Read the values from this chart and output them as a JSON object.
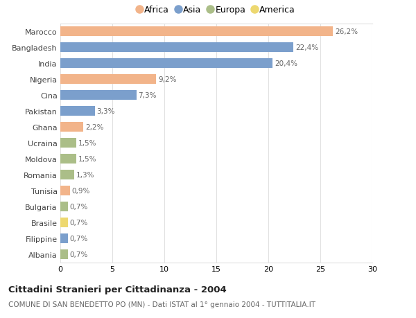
{
  "countries": [
    "Marocco",
    "Bangladesh",
    "India",
    "Nigeria",
    "Cina",
    "Pakistan",
    "Ghana",
    "Ucraina",
    "Moldova",
    "Romania",
    "Tunisia",
    "Bulgaria",
    "Brasile",
    "Filippine",
    "Albania"
  ],
  "values": [
    26.2,
    22.4,
    20.4,
    9.2,
    7.3,
    3.3,
    2.2,
    1.5,
    1.5,
    1.3,
    0.9,
    0.7,
    0.7,
    0.7,
    0.7
  ],
  "labels": [
    "26,2%",
    "22,4%",
    "20,4%",
    "9,2%",
    "7,3%",
    "3,3%",
    "2,2%",
    "1,5%",
    "1,5%",
    "1,3%",
    "0,9%",
    "0,7%",
    "0,7%",
    "0,7%",
    "0,7%"
  ],
  "continents": [
    "Africa",
    "Asia",
    "Asia",
    "Africa",
    "Asia",
    "Asia",
    "Africa",
    "Europa",
    "Europa",
    "Europa",
    "Africa",
    "Europa",
    "America",
    "Asia",
    "Europa"
  ],
  "colors": {
    "Africa": "#F2B48A",
    "Asia": "#7B9FCC",
    "Europa": "#ABBE88",
    "America": "#EDD870"
  },
  "legend_order": [
    "Africa",
    "Asia",
    "Europa",
    "America"
  ],
  "title": "Cittadini Stranieri per Cittadinanza - 2004",
  "subtitle": "COMUNE DI SAN BENEDETTO PO (MN) - Dati ISTAT al 1° gennaio 2004 - TUTTITALIA.IT",
  "xlim": [
    0,
    30
  ],
  "xticks": [
    0,
    5,
    10,
    15,
    20,
    25,
    30
  ],
  "bg_color": "#ffffff",
  "grid_color": "#e0e0e0"
}
